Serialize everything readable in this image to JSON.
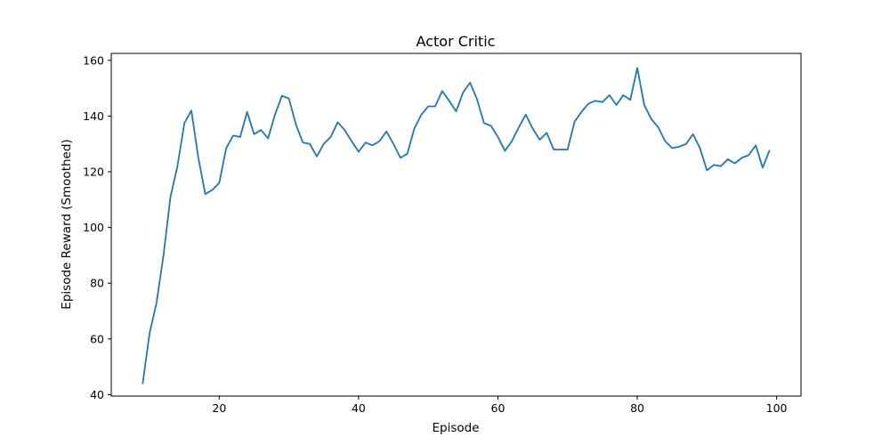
{
  "chart_data": {
    "type": "line",
    "title": "Actor Critic",
    "xlabel": "Episode",
    "ylabel": "Episode Reward (Smoothed)",
    "xlim": [
      4.5,
      103.5
    ],
    "ylim": [
      39.5,
      162.5
    ],
    "xticks": [
      20,
      40,
      60,
      80,
      100
    ],
    "yticks": [
      40,
      60,
      80,
      100,
      120,
      140,
      160
    ],
    "grid": false,
    "legend": "none",
    "color": "#1f77b4",
    "series": [
      {
        "x": [
          9,
          10,
          11,
          12,
          13,
          14,
          15,
          16,
          17,
          18,
          19,
          20,
          21,
          22,
          23,
          24,
          25,
          26,
          27,
          28,
          29,
          30,
          31,
          32,
          33,
          34,
          35,
          36,
          37,
          38,
          39,
          40,
          41,
          42,
          43,
          44,
          45,
          46,
          47,
          48,
          49,
          50,
          51,
          52,
          53,
          54,
          55,
          56,
          57,
          58,
          59,
          60,
          61,
          62,
          63,
          64,
          65,
          66,
          67,
          68,
          69,
          70,
          71,
          72,
          73,
          74,
          75,
          76,
          77,
          78,
          79,
          80,
          81,
          82,
          83,
          84,
          85,
          86,
          87,
          88,
          89,
          90,
          91,
          92,
          93,
          94,
          95,
          96,
          97,
          98,
          99
        ],
        "values": [
          43.8,
          62.0,
          73.0,
          90.0,
          111.0,
          122.0,
          137.5,
          142.0,
          125.0,
          112.0,
          113.5,
          116.0,
          128.5,
          133.0,
          132.5,
          141.5,
          133.5,
          135.0,
          132.0,
          140.5,
          147.3,
          146.3,
          137.0,
          130.5,
          130.0,
          125.5,
          130.0,
          132.5,
          137.8,
          135.0,
          131.0,
          127.2,
          130.5,
          129.5,
          131.0,
          134.5,
          130.0,
          125.0,
          126.5,
          135.5,
          140.5,
          143.5,
          143.5,
          149.0,
          145.5,
          141.7,
          148.5,
          152.0,
          146.0,
          137.5,
          136.5,
          132.5,
          127.5,
          131.0,
          136.0,
          140.5,
          135.5,
          131.5,
          134.0,
          128.0,
          128.0,
          128.0,
          138.0,
          141.5,
          144.5,
          145.5,
          145.0,
          147.5,
          144.0,
          147.5,
          145.8,
          157.3,
          144.0,
          139.0,
          136.0,
          131.0,
          128.5,
          129.0,
          130.0,
          133.5,
          128.5,
          120.5,
          122.5,
          122.0,
          124.5,
          123.0,
          125.0,
          126.0,
          129.5,
          121.5,
          127.8
        ]
      }
    ]
  }
}
